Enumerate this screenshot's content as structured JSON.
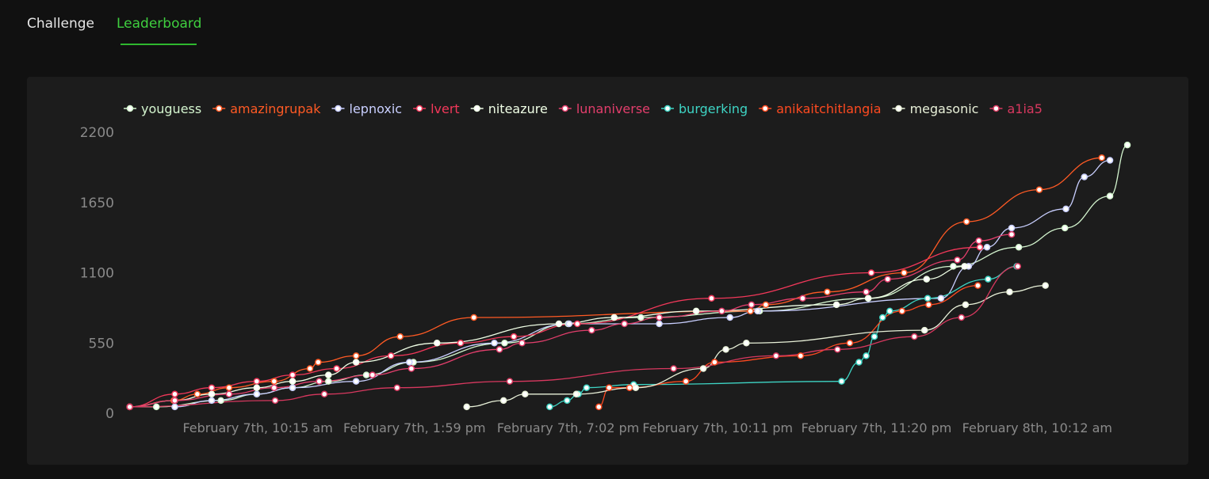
{
  "tabs": {
    "challenge": "Challenge",
    "leaderboard": "Leaderboard",
    "active": "leaderboard",
    "active_color": "#3fcf3f"
  },
  "colors": {
    "background": "#111111",
    "panel": "#1c1c1c",
    "axis_text": "#8a8a8a",
    "marker_fill": "#ffffff"
  },
  "chart_data": {
    "type": "line",
    "title": "",
    "xlabel": "",
    "ylabel": "",
    "ylim": [
      0,
      2200
    ],
    "yticks": [
      0,
      550,
      1100,
      1650,
      2200
    ],
    "xticks": [
      {
        "label": "February 7th, 10:15 am",
        "at": 0.134
      },
      {
        "label": "February 7th, 1:59 pm",
        "at": 0.287
      },
      {
        "label": "February 7th, 7:02 pm",
        "at": 0.437
      },
      {
        "label": "February 7th, 10:11 pm",
        "at": 0.583
      },
      {
        "label": "February 7th, 11:20 pm",
        "at": 0.738
      },
      {
        "label": "February 8th, 10:12 am",
        "at": 0.895
      }
    ],
    "legend": "top",
    "grid": false,
    "series": [
      {
        "name": "youguess",
        "color": "#d4f5cf",
        "points": [
          [
            0.009,
            50
          ],
          [
            0.035,
            50
          ],
          [
            0.098,
            100
          ],
          [
            0.133,
            150
          ],
          [
            0.168,
            200
          ],
          [
            0.203,
            250
          ],
          [
            0.24,
            300
          ],
          [
            0.286,
            400
          ],
          [
            0.375,
            550
          ],
          [
            0.437,
            700
          ],
          [
            0.508,
            750
          ],
          [
            0.624,
            800
          ],
          [
            0.73,
            900
          ],
          [
            0.813,
            1150
          ],
          [
            0.877,
            1300
          ],
          [
            0.922,
            1450
          ],
          [
            0.966,
            1700
          ],
          [
            0.983,
            2100
          ]
        ]
      },
      {
        "name": "amazingrupak",
        "color": "#ff5a24",
        "points": [
          [
            0.009,
            50
          ],
          [
            0.052,
            100
          ],
          [
            0.075,
            150
          ],
          [
            0.106,
            200
          ],
          [
            0.15,
            250
          ],
          [
            0.185,
            350
          ],
          [
            0.193,
            400
          ],
          [
            0.23,
            450
          ],
          [
            0.273,
            600
          ],
          [
            0.345,
            750
          ],
          [
            0.615,
            800
          ],
          [
            0.63,
            850
          ],
          [
            0.69,
            950
          ],
          [
            0.765,
            1100
          ],
          [
            0.826,
            1500
          ],
          [
            0.897,
            1750
          ],
          [
            0.958,
            2000
          ]
        ]
      },
      {
        "name": "lepnoxic",
        "color": "#c9cfff",
        "points": [
          [
            0.053,
            50
          ],
          [
            0.089,
            100
          ],
          [
            0.133,
            150
          ],
          [
            0.168,
            200
          ],
          [
            0.23,
            250
          ],
          [
            0.282,
            400
          ],
          [
            0.365,
            550
          ],
          [
            0.438,
            700
          ],
          [
            0.526,
            700
          ],
          [
            0.595,
            750
          ],
          [
            0.622,
            800
          ],
          [
            0.801,
            900
          ],
          [
            0.828,
            1150
          ],
          [
            0.846,
            1300
          ],
          [
            0.87,
            1450
          ],
          [
            0.923,
            1600
          ],
          [
            0.941,
            1850
          ],
          [
            0.966,
            1980
          ]
        ]
      },
      {
        "name": "lvert",
        "color": "#f2385a",
        "points": [
          [
            0.009,
            50
          ],
          [
            0.053,
            150
          ],
          [
            0.089,
            200
          ],
          [
            0.133,
            250
          ],
          [
            0.168,
            300
          ],
          [
            0.211,
            350
          ],
          [
            0.264,
            450
          ],
          [
            0.332,
            550
          ],
          [
            0.384,
            600
          ],
          [
            0.446,
            700
          ],
          [
            0.577,
            900
          ],
          [
            0.733,
            1100
          ],
          [
            0.839,
            1300
          ]
        ]
      },
      {
        "name": "niteazure",
        "color": "#f0ffe6",
        "points": [
          [
            0.009,
            50
          ],
          [
            0.053,
            100
          ],
          [
            0.089,
            150
          ],
          [
            0.133,
            200
          ],
          [
            0.168,
            250
          ],
          [
            0.203,
            300
          ],
          [
            0.23,
            400
          ],
          [
            0.309,
            550
          ],
          [
            0.428,
            700
          ],
          [
            0.482,
            750
          ],
          [
            0.562,
            800
          ],
          [
            0.699,
            850
          ],
          [
            0.73,
            900
          ],
          [
            0.787,
            1050
          ],
          [
            0.824,
            1150
          ]
        ]
      },
      {
        "name": "lunaniverse",
        "color": "#e33e6c",
        "points": [
          [
            0.009,
            50
          ],
          [
            0.053,
            100
          ],
          [
            0.106,
            150
          ],
          [
            0.15,
            200
          ],
          [
            0.194,
            250
          ],
          [
            0.246,
            300
          ],
          [
            0.284,
            350
          ],
          [
            0.37,
            500
          ],
          [
            0.392,
            550
          ],
          [
            0.46,
            650
          ],
          [
            0.492,
            700
          ],
          [
            0.526,
            750
          ],
          [
            0.587,
            800
          ],
          [
            0.616,
            850
          ],
          [
            0.666,
            900
          ],
          [
            0.728,
            950
          ],
          [
            0.749,
            1050
          ],
          [
            0.817,
            1200
          ],
          [
            0.838,
            1350
          ],
          [
            0.87,
            1400
          ]
        ]
      },
      {
        "name": "burgerking",
        "color": "#3ed4c4",
        "points": [
          [
            0.419,
            50
          ],
          [
            0.436,
            100
          ],
          [
            0.447,
            150
          ],
          [
            0.455,
            200
          ],
          [
            0.501,
            225
          ],
          [
            0.704,
            250
          ],
          [
            0.721,
            400
          ],
          [
            0.728,
            450
          ],
          [
            0.736,
            600
          ],
          [
            0.744,
            750
          ],
          [
            0.751,
            800
          ],
          [
            0.788,
            900
          ],
          [
            0.847,
            1050
          ],
          [
            0.875,
            1150
          ]
        ]
      },
      {
        "name": "anikaitchitlangia",
        "color": "#ff4a20",
        "points": [
          [
            0.467,
            50
          ],
          [
            0.477,
            200
          ],
          [
            0.497,
            200
          ],
          [
            0.552,
            250
          ],
          [
            0.58,
            400
          ],
          [
            0.664,
            450
          ],
          [
            0.712,
            550
          ],
          [
            0.763,
            800
          ],
          [
            0.789,
            850
          ],
          [
            0.837,
            1000
          ]
        ]
      },
      {
        "name": "megasonic",
        "color": "#e8f0d8",
        "points": [
          [
            0.338,
            50
          ],
          [
            0.374,
            100
          ],
          [
            0.395,
            150
          ],
          [
            0.445,
            150
          ],
          [
            0.503,
            200
          ],
          [
            0.569,
            350
          ],
          [
            0.591,
            500
          ],
          [
            0.611,
            550
          ],
          [
            0.785,
            650
          ],
          [
            0.825,
            850
          ],
          [
            0.868,
            950
          ],
          [
            0.903,
            1000
          ]
        ]
      },
      {
        "name": "a1ia5",
        "color": "#d8385f",
        "points": [
          [
            0.009,
            50
          ],
          [
            0.151,
            100
          ],
          [
            0.199,
            150
          ],
          [
            0.27,
            200
          ],
          [
            0.38,
            250
          ],
          [
            0.54,
            350
          ],
          [
            0.64,
            450
          ],
          [
            0.7,
            500
          ],
          [
            0.775,
            600
          ],
          [
            0.821,
            750
          ],
          [
            0.876,
            1150
          ]
        ]
      }
    ]
  }
}
